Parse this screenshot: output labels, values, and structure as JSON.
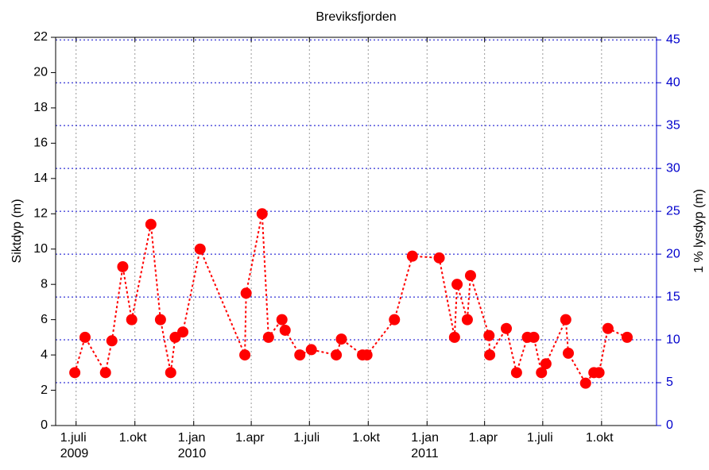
{
  "chart_data": {
    "type": "line",
    "title": "Breviksfjorden",
    "y_label": "Siktdyp (m)",
    "y2_label": "1 % lysdyp (m)",
    "x": [
      "2009-06-29",
      "2009-07-15",
      "2009-08-16",
      "2009-08-26",
      "2009-09-12",
      "2009-09-26",
      "2009-10-26",
      "2009-11-10",
      "2009-11-26",
      "2009-12-03",
      "2009-12-15",
      "2010-01-11",
      "2010-03-22",
      "2010-03-24",
      "2010-04-18",
      "2010-04-28",
      "2010-05-19",
      "2010-05-24",
      "2010-06-16",
      "2010-07-04",
      "2010-08-12",
      "2010-08-20",
      "2010-09-22",
      "2010-09-29",
      "2010-11-11",
      "2010-12-09",
      "2011-01-20",
      "2011-02-13",
      "2011-02-17",
      "2011-03-05",
      "2011-03-10",
      "2011-04-08",
      "2011-04-09",
      "2011-05-05",
      "2011-05-21",
      "2011-06-07",
      "2011-06-17",
      "2011-06-29",
      "2011-07-06",
      "2011-08-06",
      "2011-08-10",
      "2011-09-06",
      "2011-09-19",
      "2011-09-27",
      "2011-10-11",
      "2011-11-10"
    ],
    "series": [
      {
        "color": "#ff0000",
        "values": [
          3,
          5,
          3,
          4.8,
          9,
          6,
          11.4,
          6,
          3,
          5,
          5.3,
          10,
          4,
          7.5,
          12,
          5,
          6,
          5.4,
          4,
          4.3,
          4,
          4.9,
          4,
          4,
          6,
          9.6,
          9.5,
          5,
          8,
          6,
          8.5,
          5.1,
          4,
          5.5,
          3,
          5,
          5,
          3,
          3.5,
          6,
          4.1,
          2.4,
          3,
          3,
          5.5,
          5
        ]
      }
    ],
    "xlim": [
      "2009-05-30",
      "2011-12-26"
    ],
    "xticks": [
      {
        "value": "2009-07-01",
        "label": "1.juli\n2009"
      },
      {
        "value": "2009-10-01",
        "label": "1.okt"
      },
      {
        "value": "2010-01-01",
        "label": "1.jan\n2010"
      },
      {
        "value": "2010-04-01",
        "label": "1.apr"
      },
      {
        "value": "2010-07-01",
        "label": "1.juli"
      },
      {
        "value": "2010-10-01",
        "label": "1.okt"
      },
      {
        "value": "2011-01-01",
        "label": "1.jan\n2011"
      },
      {
        "value": "2011-04-01",
        "label": "1.apr"
      },
      {
        "value": "2011-07-01",
        "label": "1.juli"
      },
      {
        "value": "2011-10-01",
        "label": "1.okt"
      }
    ],
    "ylim": [
      0,
      22
    ],
    "yticks": [
      0,
      2,
      4,
      6,
      8,
      10,
      12,
      14,
      16,
      18,
      20,
      22
    ],
    "y2lim": [
      0,
      45.3
    ],
    "y2ticks": [
      0,
      5,
      10,
      15,
      20,
      25,
      30,
      35,
      40,
      45
    ],
    "y2_color": "#0000cc",
    "xgrid": true,
    "y2grid": true
  }
}
